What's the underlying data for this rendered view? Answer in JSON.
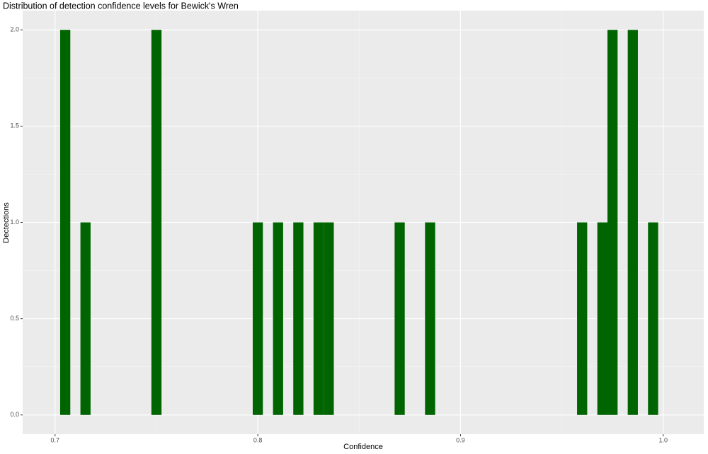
{
  "chart_data": {
    "type": "histogram",
    "title": "Distribution of detection confidence levels for Bewick's Wren",
    "x_label": "Confidence",
    "y_label": "Dectections",
    "color": "#006400",
    "grid": true,
    "bins": [
      0.7025,
      0.7075,
      0.7125,
      0.7175,
      0.7225,
      0.7275,
      0.7325,
      0.7375,
      0.7425,
      0.7475,
      0.7525,
      0.7575,
      0.7625,
      0.7675,
      0.7725,
      0.7775,
      0.7825,
      0.7875,
      0.7925,
      0.7975,
      0.8025,
      0.8075,
      0.8125,
      0.8175,
      0.8225,
      0.8275,
      0.8325,
      0.8375,
      0.8425,
      0.8475,
      0.8525,
      0.8575,
      0.8625,
      0.8675,
      0.8725,
      0.8775,
      0.8825,
      0.8875,
      0.8925,
      0.8975,
      0.9025,
      0.9075,
      0.9125,
      0.9175,
      0.9225,
      0.9275,
      0.9325,
      0.9375,
      0.9425,
      0.9475,
      0.9525,
      0.9575,
      0.9625,
      0.9675,
      0.9725,
      0.9775,
      0.9825,
      0.9875,
      0.9925,
      0.9975
    ],
    "values": [
      2,
      0,
      1,
      0,
      0,
      0,
      0,
      0,
      0,
      2,
      0,
      0,
      0,
      0,
      0,
      0,
      0,
      0,
      0,
      1,
      0,
      1,
      0,
      1,
      0,
      1,
      1,
      0,
      0,
      0,
      0,
      0,
      0,
      1,
      0,
      0,
      1,
      0,
      0,
      0,
      0,
      0,
      0,
      0,
      0,
      0,
      0,
      0,
      0,
      0,
      0,
      1,
      0,
      1,
      2,
      0,
      2,
      0,
      1
    ],
    "xlim": [
      0.684,
      1.02
    ],
    "ylim": [
      -0.1,
      2.1
    ],
    "xticks": [
      0.7,
      0.8,
      0.9,
      {
        "value": 1.0,
        "label": "1.0"
      }
    ],
    "yticks": [
      {
        "value": 0,
        "label": "0.0"
      },
      0.5,
      {
        "value": 1,
        "label": "1.0"
      },
      1.5,
      {
        "value": 2,
        "label": "2.0"
      }
    ]
  }
}
